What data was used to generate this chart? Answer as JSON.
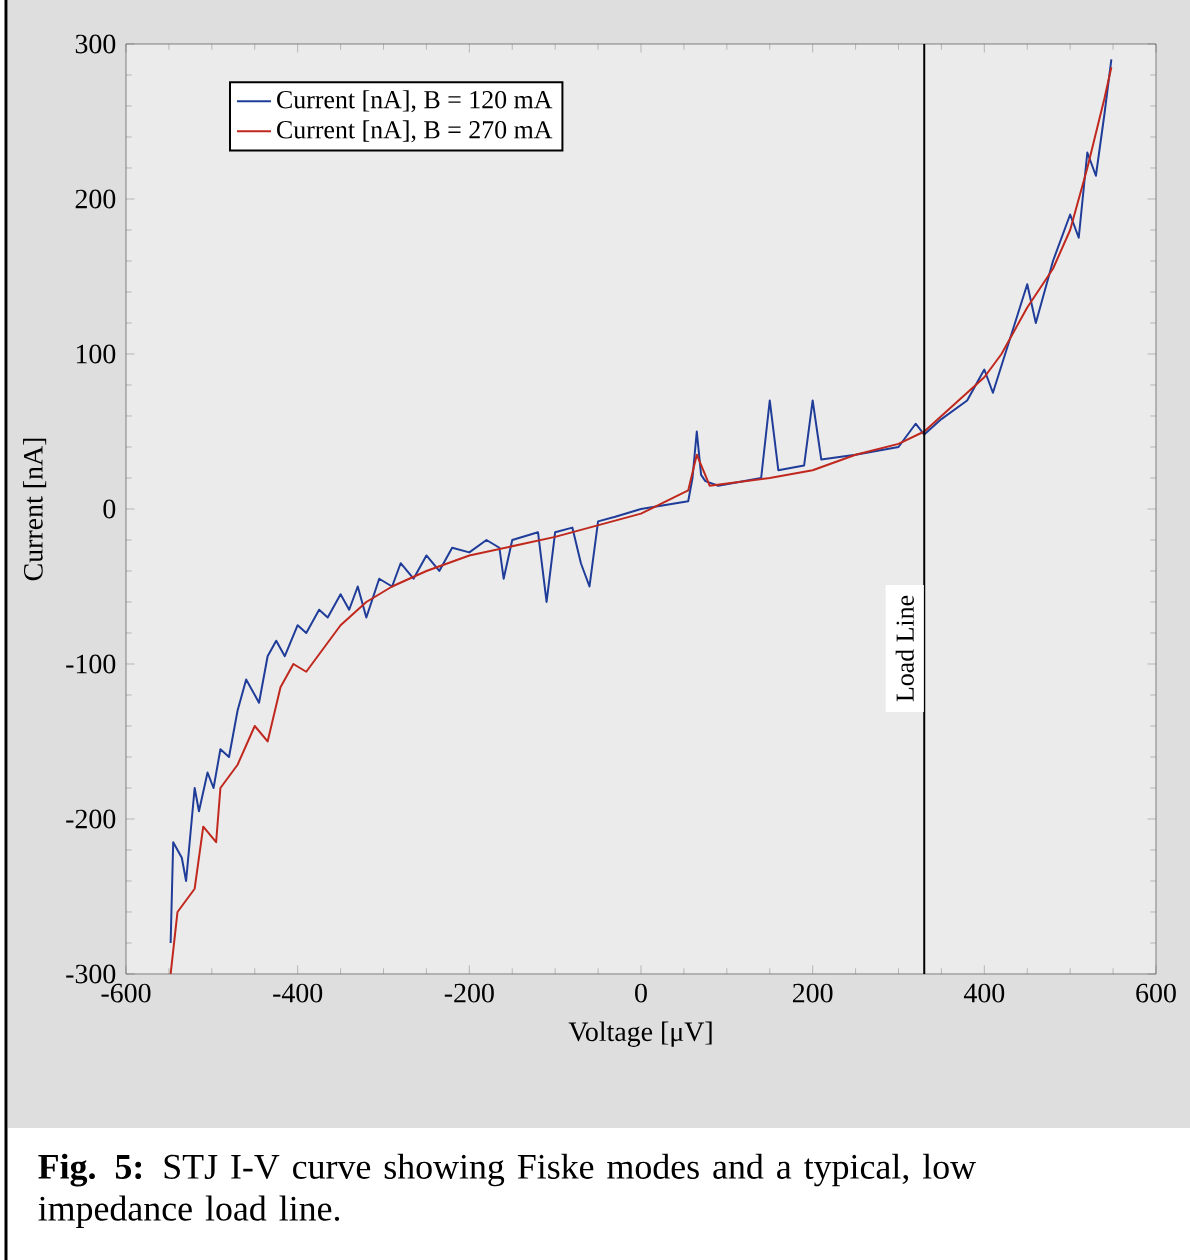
{
  "chart_data": {
    "type": "line",
    "xlabel": "Voltage [μV]",
    "ylabel": "Current [nA]",
    "xlim": [
      -600,
      600
    ],
    "ylim": [
      -300,
      300
    ],
    "xticks": [
      -600,
      -400,
      -200,
      0,
      200,
      400,
      600
    ],
    "yticks": [
      -300,
      -200,
      -100,
      0,
      100,
      200,
      300
    ],
    "grid": false,
    "legend": "top left",
    "marker": "none",
    "line_style": "solid",
    "series": [
      {
        "name": "Current [nA], B = 120 mA",
        "color": "#1f3c99",
        "x": [
          -548,
          -545,
          -535,
          -530,
          -520,
          -515,
          -505,
          -498,
          -490,
          -480,
          -470,
          -460,
          -445,
          -435,
          -425,
          -415,
          -400,
          -390,
          -375,
          -365,
          -350,
          -340,
          -330,
          -320,
          -305,
          -290,
          -280,
          -265,
          -250,
          -235,
          -220,
          -200,
          -180,
          -165,
          -160,
          -150,
          -120,
          -110,
          -100,
          -80,
          -70,
          -60,
          -50,
          -30,
          0,
          55,
          60,
          65,
          70,
          75,
          90,
          140,
          150,
          160,
          190,
          200,
          210,
          250,
          300,
          320,
          330,
          350,
          380,
          400,
          410,
          430,
          450,
          460,
          480,
          500,
          510,
          520,
          530,
          540,
          548
        ],
        "values": [
          -280,
          -215,
          -225,
          -240,
          -180,
          -195,
          -170,
          -180,
          -155,
          -160,
          -130,
          -110,
          -125,
          -95,
          -85,
          -95,
          -75,
          -80,
          -65,
          -70,
          -55,
          -65,
          -50,
          -70,
          -45,
          -50,
          -35,
          -45,
          -30,
          -40,
          -25,
          -28,
          -20,
          -25,
          -45,
          -20,
          -15,
          -60,
          -15,
          -12,
          -35,
          -50,
          -8,
          -5,
          0,
          5,
          20,
          50,
          22,
          18,
          15,
          20,
          70,
          25,
          28,
          70,
          32,
          35,
          40,
          55,
          48,
          58,
          70,
          90,
          75,
          110,
          145,
          120,
          160,
          190,
          175,
          230,
          215,
          255,
          290
        ]
      },
      {
        "name": "Current [nA], B = 270 mA",
        "color": "#c0281e",
        "x": [
          -548,
          -540,
          -520,
          -510,
          -495,
          -490,
          -470,
          -450,
          -435,
          -420,
          -405,
          -390,
          -370,
          -350,
          -320,
          -290,
          -250,
          -200,
          -100,
          0,
          55,
          65,
          80,
          150,
          200,
          250,
          300,
          330,
          360,
          400,
          420,
          450,
          480,
          500,
          520,
          540,
          548
        ],
        "values": [
          -300,
          -260,
          -245,
          -205,
          -215,
          -180,
          -165,
          -140,
          -150,
          -115,
          -100,
          -105,
          -90,
          -75,
          -60,
          -50,
          -40,
          -30,
          -18,
          -3,
          12,
          35,
          15,
          20,
          25,
          35,
          42,
          50,
          65,
          85,
          100,
          130,
          155,
          180,
          220,
          265,
          285
        ]
      }
    ],
    "ref_lines": [
      {
        "axis": "x",
        "value": 330,
        "label": "Load Line",
        "color": "#000000"
      }
    ],
    "annotations": [
      "**Fig. 5:** STJ I-V curve showing Fiske modes and a typical, low impedance load line."
    ]
  }
}
